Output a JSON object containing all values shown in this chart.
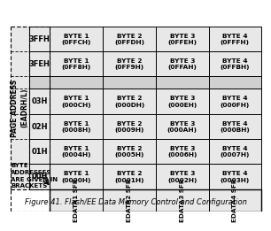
{
  "title": "Figure 41. Flash/EE Data Memory Control and Configuration",
  "page_address_label": "PAGE ADDRESS\n(EADRH/L)",
  "row_labels": [
    "3FFH",
    "3FEH",
    "",
    "03H",
    "02H",
    "01H",
    "00H"
  ],
  "col_labels": [
    "EDATA1 SFR",
    "EDATA2 SFR",
    "EDATA3 SFR",
    "EDATA4 SFR"
  ],
  "cells": [
    [
      "BYTE 1\n(0FFCH)",
      "BYTE 2\n(0FFDH)",
      "BYTE 3\n(0FFEH)",
      "BYTE 4\n(0FFFH)"
    ],
    [
      "BYTE 1\n(0FF8H)",
      "BYTE 2\n(0FF9H)",
      "BYTE 3\n(0FFAH)",
      "BYTE 4\n(0FFBH)"
    ],
    [
      "",
      "",
      "",
      ""
    ],
    [
      "BYTE 1\n(000CH)",
      "BYTE 2\n(000DH)",
      "BYTE 3\n(000EH)",
      "BYTE 4\n(000FH)"
    ],
    [
      "BYTE 1\n(0008H)",
      "BYTE 2\n(0009H)",
      "BYTE 3\n(000AH)",
      "BYTE 4\n(000BH)"
    ],
    [
      "BYTE 1\n(0004H)",
      "BYTE 2\n(0005H)",
      "BYTE 3\n(0006H)",
      "BYTE 4\n(0007H)"
    ],
    [
      "BYTE 1\n(0000H)",
      "BYTE 2\n(0001H)",
      "BYTE 3\n(0002H)",
      "BYTE 4\n(0003H)"
    ]
  ],
  "note": "BYTE\nADDRESSES\nARE GIVEN IN\nBRACKETS",
  "cell_bg": "#e8e8e8",
  "gap_bg": "#d0d0d0"
}
